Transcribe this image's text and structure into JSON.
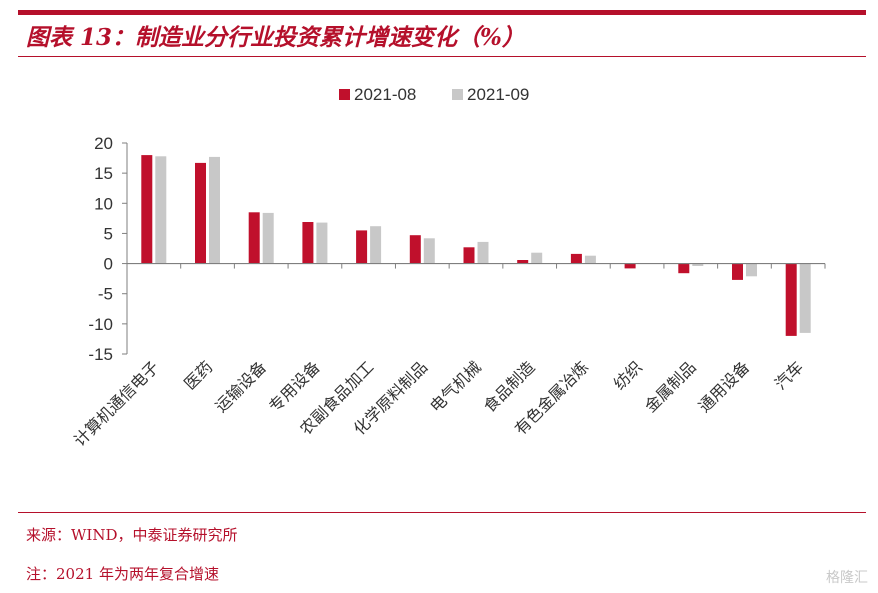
{
  "title": "图表 13：制造业分行业投资累计增速变化（%）",
  "source": "来源：WIND，中泰证券研究所",
  "note": "注：2021 年为两年复合增速",
  "watermark": "格隆汇",
  "colors": {
    "accent": "#b5102b",
    "series1": "#c0102c",
    "series2": "#c8c8c8"
  },
  "chart_data": {
    "type": "bar",
    "title": "",
    "xlabel": "",
    "ylabel": "",
    "ylim": [
      -15,
      20
    ],
    "yticks": [
      20,
      15,
      10,
      5,
      0,
      -5,
      -10,
      -15
    ],
    "grid": false,
    "legend_position": "top-center",
    "categories": [
      "计算机通信电子",
      "医药",
      "运输设备",
      "专用设备",
      "农副食品加工",
      "化学原料制品",
      "电气机械",
      "食品制造",
      "有色金属冶炼",
      "纺织",
      "金属制品",
      "通用设备",
      "汽车"
    ],
    "series": [
      {
        "name": "2021-08",
        "values": [
          18.0,
          16.7,
          8.5,
          6.9,
          5.5,
          4.7,
          2.7,
          0.6,
          1.6,
          -0.8,
          -1.6,
          -2.7,
          -12.0
        ]
      },
      {
        "name": "2021-09",
        "values": [
          17.8,
          17.7,
          8.4,
          6.8,
          6.2,
          4.2,
          3.6,
          1.8,
          1.3,
          0.0,
          -0.4,
          -2.1,
          -11.5
        ]
      }
    ]
  }
}
